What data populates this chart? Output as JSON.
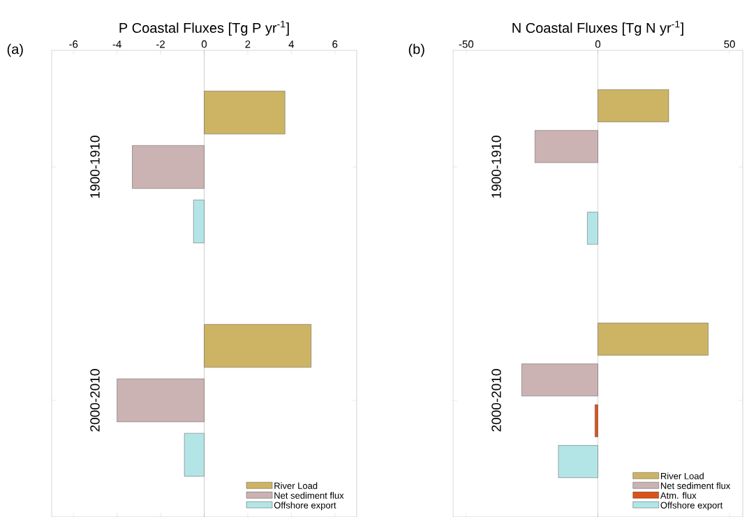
{
  "chart_data": [
    {
      "type": "bar",
      "orientation": "horizontal",
      "xlabel": "P Coastal Fluxes [Tg P yr$^{-1}$]",
      "annotations": [
        "(a)"
      ],
      "categories": [
        "1900-1910",
        "2000-2010"
      ],
      "series": [
        {
          "name": "River Load",
          "color": "#cdb464",
          "values": [
            3.71,
            4.91
          ]
        },
        {
          "name": "Net sediment flux",
          "color": "#cbb3b3",
          "values": [
            -3.3,
            -4.0
          ]
        },
        {
          "name": "Offshore export",
          "color": "#b3e5e6",
          "values": [
            -0.49,
            -0.91
          ]
        }
      ],
      "xlim": [
        -7,
        7
      ],
      "xticks": [
        -6,
        -4,
        -2,
        0,
        2,
        4,
        6
      ],
      "legend": "bottom right",
      "ref_lines": [
        {
          "axis": "x",
          "value": 0,
          "color": "#808080"
        }
      ]
    },
    {
      "type": "bar",
      "orientation": "horizontal",
      "xlabel": "N Coastal Fluxes [Tg N yr$^{-1}$]",
      "annotations": [
        "(b)"
      ],
      "categories": [
        "1900-1910",
        "2000-2010"
      ],
      "series": [
        {
          "name": "River Load",
          "color": "#cdb464",
          "values": [
            26.9,
            41.9
          ]
        },
        {
          "name": "Net sediment flux",
          "color": "#cbb3b3",
          "values": [
            -23.9,
            -28.9
          ]
        },
        {
          "name": "Atm. flux",
          "color": "#d9541a",
          "values": [
            null,
            -1.1
          ]
        },
        {
          "name": "Offshore export",
          "color": "#b3e5e6",
          "values": [
            -4.0,
            -15.0
          ]
        }
      ],
      "xlim": [
        -55,
        55
      ],
      "xticks": [
        -50,
        0,
        50
      ],
      "legend": "bottom right",
      "ref_lines": [
        {
          "axis": "x",
          "value": 0,
          "color": "#808080"
        }
      ]
    }
  ]
}
